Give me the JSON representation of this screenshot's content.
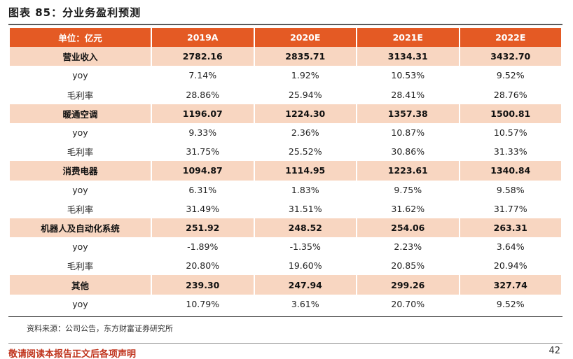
{
  "figure_title": "图表 85：分业务盈利预测",
  "table": {
    "header": [
      "单位：亿元",
      "2019A",
      "2020E",
      "2021E",
      "2022E"
    ],
    "rows": [
      {
        "type": "main",
        "cells": [
          "营业收入",
          "2782.16",
          "2835.71",
          "3134.31",
          "3432.70"
        ]
      },
      {
        "type": "sub",
        "cells": [
          "yoy",
          "7.14%",
          "1.92%",
          "10.53%",
          "9.52%"
        ]
      },
      {
        "type": "sub",
        "cells": [
          "毛利率",
          "28.86%",
          "25.94%",
          "28.41%",
          "28.76%"
        ]
      },
      {
        "type": "main",
        "cells": [
          "暖通空调",
          "1196.07",
          "1224.30",
          "1357.38",
          "1500.81"
        ]
      },
      {
        "type": "sub",
        "cells": [
          "yoy",
          "9.33%",
          "2.36%",
          "10.87%",
          "10.57%"
        ]
      },
      {
        "type": "sub",
        "cells": [
          "毛利率",
          "31.75%",
          "25.52%",
          "30.86%",
          "31.33%"
        ]
      },
      {
        "type": "main",
        "cells": [
          "消费电器",
          "1094.87",
          "1114.95",
          "1223.61",
          "1340.84"
        ]
      },
      {
        "type": "sub",
        "cells": [
          "yoy",
          "6.31%",
          "1.83%",
          "9.75%",
          "9.58%"
        ]
      },
      {
        "type": "sub",
        "cells": [
          "毛利率",
          "31.49%",
          "31.51%",
          "31.62%",
          "31.77%"
        ]
      },
      {
        "type": "main",
        "cells": [
          "机器人及自动化系统",
          "251.92",
          "248.52",
          "254.06",
          "263.31"
        ]
      },
      {
        "type": "sub",
        "cells": [
          "yoy",
          "-1.89%",
          "-1.35%",
          "2.23%",
          "3.64%"
        ]
      },
      {
        "type": "sub",
        "cells": [
          "毛利率",
          "20.80%",
          "19.60%",
          "20.85%",
          "20.94%"
        ]
      },
      {
        "type": "main",
        "cells": [
          "其他",
          "239.30",
          "247.94",
          "299.26",
          "327.74"
        ]
      },
      {
        "type": "sub",
        "cells": [
          "yoy",
          "10.79%",
          "3.61%",
          "20.70%",
          "9.52%"
        ]
      }
    ]
  },
  "source": "资料来源：公司公告，东方财富证券研究所",
  "disclaimer": "敬请阅读本报告正文后各项声明",
  "page_number": "42",
  "colors": {
    "header_bg": "#e45a24",
    "main_row_bg": "#f8d6c1",
    "disclaimer_text": "#c0341d"
  }
}
